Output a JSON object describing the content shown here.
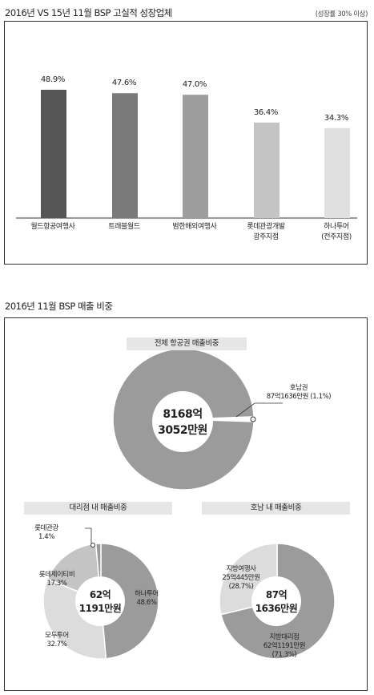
{
  "section1": {
    "title": "2016년 VS 15년 11월 BSP 고실적 성장업체",
    "note": "(성장률 30% 이상)"
  },
  "section2": {
    "title": "2016년 11월 BSP 매출 비중"
  },
  "chart_data": [
    {
      "type": "bar",
      "title": "2016년 VS 15년 11월 BSP 고실적 성장업체",
      "categories": [
        "월드항공여행사",
        "트래블월드",
        "범한해외여행사",
        "롯데관광개발 광주지점",
        "하나투어 (전주지점)"
      ],
      "category_lines": [
        [
          "월드항공여행사"
        ],
        [
          "트래블월드"
        ],
        [
          "범한해외여행사"
        ],
        [
          "롯데관광개발",
          "광주지점"
        ],
        [
          "하나투어",
          "(전주지점)"
        ]
      ],
      "values": [
        48.9,
        47.6,
        47.0,
        36.4,
        34.3
      ],
      "value_labels": [
        "48.9%",
        "47.6%",
        "47.0%",
        "36.4%",
        "34.3%"
      ],
      "colors": [
        "#555555",
        "#7a7a7a",
        "#9d9d9d",
        "#c4c4c4",
        "#e0e0e0"
      ],
      "ylim": [
        0,
        60
      ]
    },
    {
      "type": "pie",
      "title": "전체 항공권 매출비중",
      "center_lines": [
        "8168억",
        "3052만원"
      ],
      "slices": [
        {
          "label": "호남권",
          "value_text": "87억1636만원 (1.1%)",
          "percent": 1.1,
          "color": "#ffffff"
        },
        {
          "label": "",
          "value_text": "",
          "percent": 98.9,
          "color": "#9b9b9b"
        }
      ]
    },
    {
      "type": "pie",
      "title": "대리점 내 매출비중",
      "center_lines": [
        "62억",
        "1191만원"
      ],
      "slices": [
        {
          "label": "하나투어",
          "percent": 48.6,
          "percent_text": "48.6%",
          "color": "#9b9b9b"
        },
        {
          "label": "모두투어",
          "percent": 32.7,
          "percent_text": "32.7%",
          "color": "#dcdcdc"
        },
        {
          "label": "롯데제이티비",
          "percent": 17.3,
          "percent_text": "17.3%",
          "color": "#c4c4c4"
        },
        {
          "label": "롯데관광",
          "percent": 1.4,
          "percent_text": "1.4%",
          "color": "#9b9b9b"
        }
      ]
    },
    {
      "type": "pie",
      "title": "호남 내 매출비중",
      "center_lines": [
        "87억",
        "1636만원"
      ],
      "slices": [
        {
          "label": "지방대리점",
          "value_text": "62억1191만원",
          "percent": 71.3,
          "percent_text": "(71.3%)",
          "color": "#9b9b9b"
        },
        {
          "label": "지방여행사",
          "value_text": "25억445만원",
          "percent": 28.7,
          "percent_text": "(28.7%)",
          "color": "#dcdcdc"
        }
      ]
    }
  ]
}
